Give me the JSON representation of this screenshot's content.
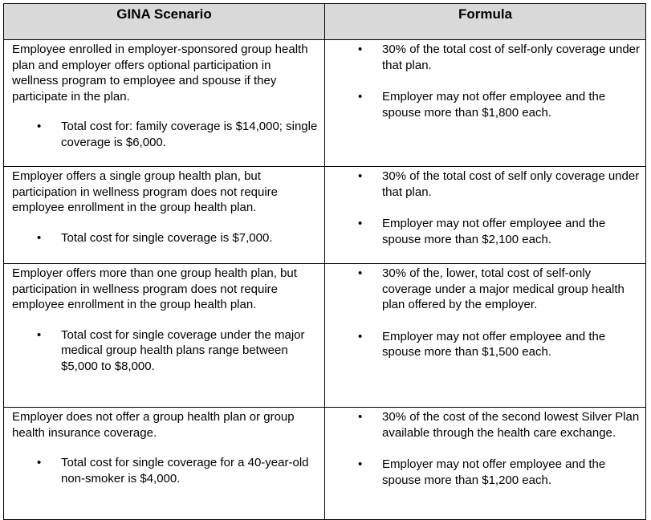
{
  "headers": {
    "scenario": "GINA Scenario",
    "formula": "Formula"
  },
  "rows": [
    {
      "scenario_text": "Employee enrolled in employer-sponsored group health plan and employer offers optional participation in wellness program to employee and spouse if they participate in the plan.",
      "scenario_bullet": "Total cost for: family coverage is $14,000; single coverage is $6,000.",
      "formula_bullets": [
        "30% of the total cost of self-only coverage under that plan.",
        "Employer may not offer employee and the spouse more than $1,800 each."
      ]
    },
    {
      "scenario_text": "Employer offers a single group health plan, but participation in wellness program does not require employee enrollment in the group health plan.",
      "scenario_bullet": "Total cost for single coverage is $7,000.",
      "formula_bullets": [
        "30% of the total cost of self only coverage under that plan.",
        "Employer may not offer employee and the spouse more than $2,100 each."
      ]
    },
    {
      "scenario_text": "Employer offers more than one group health plan, but participation in wellness program does not require employee enrollment in the group health plan.",
      "scenario_bullet": "Total cost for single coverage under the major medical group health plans range between $5,000 to $8,000.",
      "formula_bullets": [
        "30% of the, lower, total cost of self-only coverage under a major medical group health plan offered by the employer.",
        "Employer may not offer employee and the spouse more than $1,500 each."
      ]
    },
    {
      "scenario_text": "Employer does not offer a group health plan or group health insurance coverage.",
      "scenario_bullet": "Total cost for single coverage for a 40-year-old non-smoker is $4,000.",
      "formula_bullets": [
        "30% of the cost of the second lowest Silver Plan available through the health care exchange.",
        "Employer may not offer employee and the spouse more than $1,200 each."
      ]
    }
  ]
}
